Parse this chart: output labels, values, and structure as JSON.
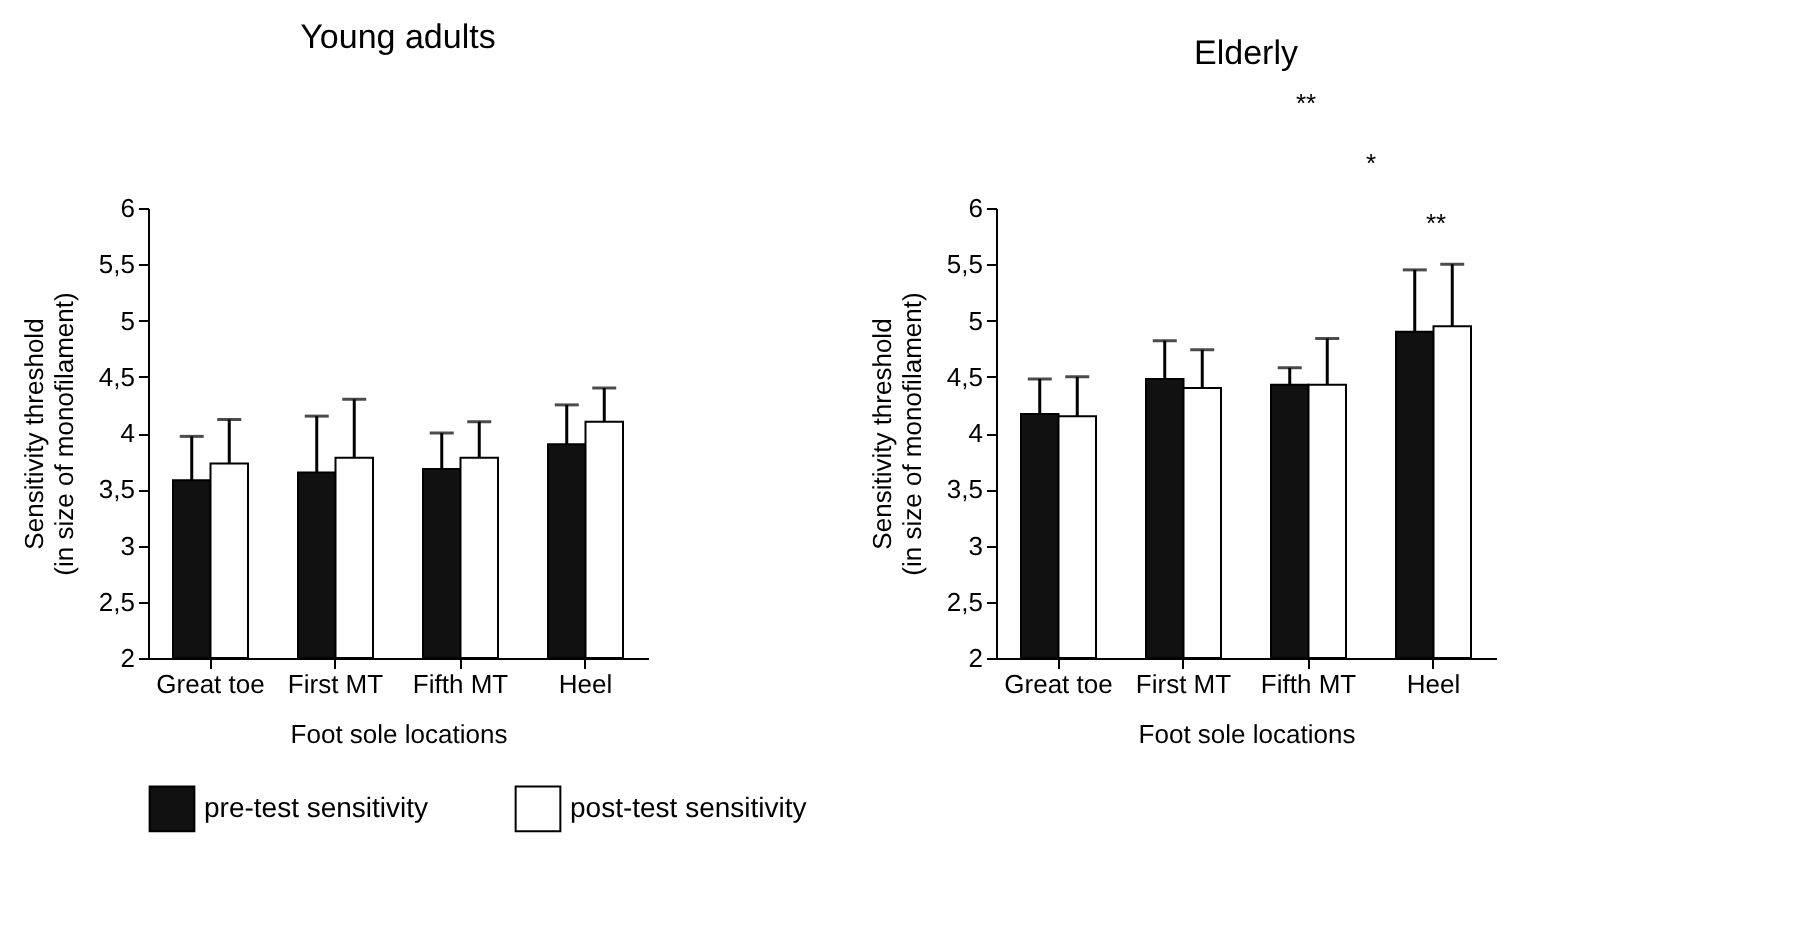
{
  "chart_data": [
    {
      "type": "bar",
      "title": "Young adults",
      "xlabel": "Foot sole locations",
      "ylabel": "Sensitivity threshold\n(in size of monofilament)",
      "categories": [
        "Great toe",
        "First MT",
        "Fifth MT",
        "Heel"
      ],
      "series": [
        {
          "name": "pre-test sensitivity",
          "color": "#111111",
          "values": [
            3.58,
            3.65,
            3.68,
            3.9
          ],
          "errors": [
            [
              3.58,
              3.97
            ],
            [
              3.65,
              4.15
            ],
            [
              3.68,
              4.0
            ],
            [
              3.9,
              4.25
            ]
          ]
        },
        {
          "name": "post-test sensitivity",
          "color": "#ffffff",
          "values": [
            3.73,
            3.78,
            3.78,
            4.1
          ],
          "errors": [
            [
              3.73,
              4.12
            ],
            [
              3.78,
              4.3
            ],
            [
              3.78,
              4.1
            ],
            [
              4.1,
              4.4
            ]
          ]
        }
      ],
      "ylim": [
        2,
        6
      ],
      "yticks": [
        2,
        {
          "value": 2.5,
          "label": "2,5"
        },
        3,
        {
          "value": 3.5,
          "label": "3,5"
        },
        4,
        {
          "value": 4.5,
          "label": "4,5"
        },
        5,
        {
          "value": 5.5,
          "label": "5,5"
        },
        6
      ],
      "grid": false,
      "legend": "bottom"
    },
    {
      "type": "bar",
      "title": "Elderly",
      "xlabel": "Foot sole locations",
      "ylabel": "Sensitivity threshold\n(in size of monofilament)",
      "categories": [
        "Great toe",
        "First MT",
        "Fifth MT",
        "Heel"
      ],
      "series": [
        {
          "name": "pre-test sensitivity",
          "color": "#111111",
          "values": [
            4.17,
            4.48,
            4.43,
            4.9
          ],
          "errors": [
            [
              4.17,
              4.48
            ],
            [
              4.48,
              4.82
            ],
            [
              4.43,
              4.58
            ],
            [
              4.9,
              5.45
            ]
          ]
        },
        {
          "name": "post-test sensitivity",
          "color": "#ffffff",
          "values": [
            4.15,
            4.4,
            4.43,
            4.95
          ],
          "errors": [
            [
              4.15,
              4.5
            ],
            [
              4.4,
              4.74
            ],
            [
              4.43,
              4.84
            ],
            [
              4.95,
              5.5
            ]
          ]
        }
      ],
      "ylim": [
        2,
        6
      ],
      "yticks": [
        2,
        {
          "value": 2.5,
          "label": "2,5"
        },
        3,
        {
          "value": 3.5,
          "label": "3,5"
        },
        4,
        {
          "value": 4.5,
          "label": "4,5"
        },
        5,
        {
          "value": 5.5,
          "label": "5,5"
        },
        6
      ],
      "grid": false,
      "legend": "bottom",
      "annotations": [
        "**",
        "*",
        "**"
      ]
    }
  ]
}
